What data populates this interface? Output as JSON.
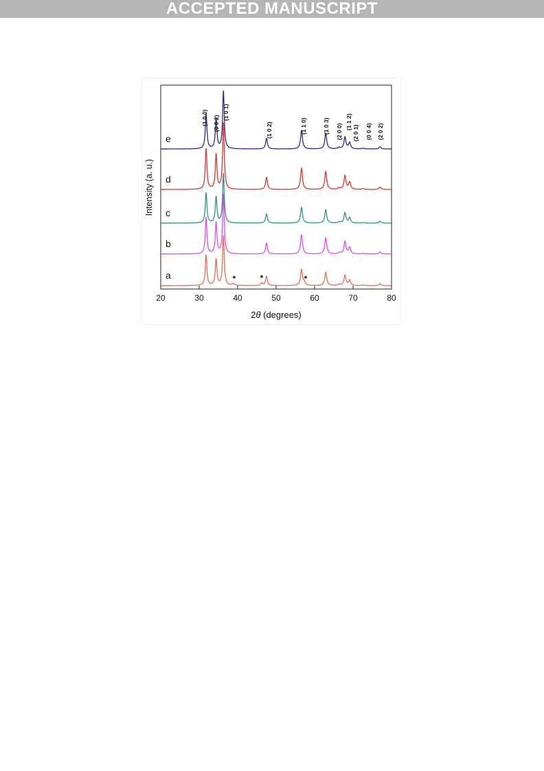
{
  "banner": {
    "text": "ACCEPTED MANUSCRIPT"
  },
  "chart_data": {
    "type": "line",
    "title": "",
    "xlabel": "2θ (degrees)",
    "ylabel": "Intensity (a. u.)",
    "xlim": [
      20,
      80
    ],
    "xticks": [
      20,
      30,
      40,
      50,
      60,
      70,
      80
    ],
    "grid": false,
    "legend": "none",
    "peaks": [
      {
        "x": 31.8,
        "height": 0.5,
        "width": 0.25
      },
      {
        "x": 34.4,
        "height": 0.43,
        "width": 0.25
      },
      {
        "x": 36.3,
        "height": 0.82,
        "width": 0.25
      },
      {
        "x": 47.5,
        "height": 0.15,
        "width": 0.28
      },
      {
        "x": 56.6,
        "height": 0.26,
        "width": 0.3
      },
      {
        "x": 62.9,
        "height": 0.22,
        "width": 0.3
      },
      {
        "x": 66.4,
        "height": 0.02,
        "width": 0.3
      },
      {
        "x": 67.9,
        "height": 0.17,
        "width": 0.3
      },
      {
        "x": 69.1,
        "height": 0.09,
        "width": 0.3
      },
      {
        "x": 72.6,
        "height": 0.01,
        "width": 0.3
      },
      {
        "x": 77.0,
        "height": 0.03,
        "width": 0.3
      }
    ],
    "series": [
      {
        "name": "a",
        "color": "#ee6a4c",
        "scale": 0.75
      },
      {
        "name": "b",
        "color": "#ee44ee",
        "scale": 0.9
      },
      {
        "name": "c",
        "color": "#2e8f88",
        "scale": 0.75
      },
      {
        "name": "d",
        "color": "#e8302c",
        "scale": 1.0
      },
      {
        "name": "e",
        "color": "#2a2a8c",
        "scale": 0.87
      }
    ],
    "impurity_peaks": [
      {
        "x": 38.9,
        "height": 0.03
      },
      {
        "x": 46.3,
        "height": 0.04
      },
      {
        "x": 57.3,
        "height": 0.05
      }
    ],
    "impurity_markers": [
      {
        "x": 38.9,
        "label": "*"
      },
      {
        "x": 46.3,
        "label": "*"
      },
      {
        "x": 57.3,
        "label": "*"
      }
    ],
    "miller_indices": [
      {
        "x": 31.8,
        "label": "(1 0 0)"
      },
      {
        "x": 34.4,
        "label": "(0 0 2)"
      },
      {
        "x": 36.3,
        "label": "(1 0 1)"
      },
      {
        "x": 47.5,
        "label": "(1 0 2)"
      },
      {
        "x": 56.6,
        "label": "(1 1 0)"
      },
      {
        "x": 62.9,
        "label": "(1 0 3)"
      },
      {
        "x": 66.4,
        "label": "(2 0 0)"
      },
      {
        "x": 67.9,
        "label": "(1 1 2)"
      },
      {
        "x": 69.1,
        "label": "(2 0 1)"
      },
      {
        "x": 72.6,
        "label": "(0 0 4)"
      },
      {
        "x": 77.0,
        "label": "(2 0 2)"
      }
    ]
  }
}
